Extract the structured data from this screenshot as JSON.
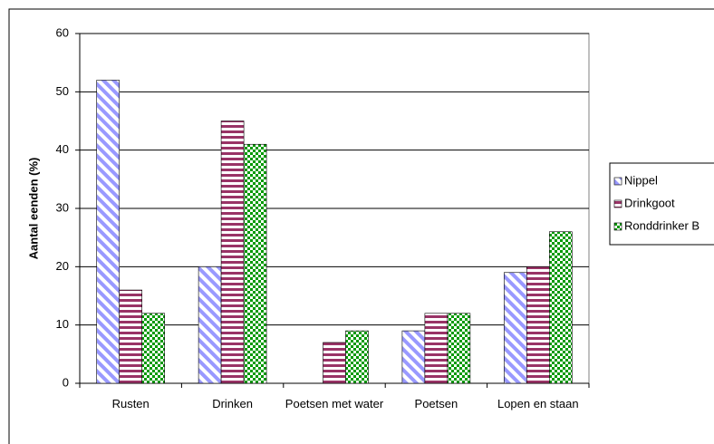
{
  "chart_data": {
    "type": "bar",
    "y_label": "Aantal eenden (%)",
    "categories": [
      "Rusten",
      "Drinken",
      "Poetsen met water",
      "Poetsen",
      "Lopen en staan"
    ],
    "series": [
      {
        "name": "Nippel",
        "color": "#9999ff",
        "pattern": "diagonal",
        "values": [
          52,
          20,
          0,
          9,
          19
        ]
      },
      {
        "name": "Drinkgoot",
        "color": "#993366",
        "pattern": "horizontal",
        "values": [
          16,
          45,
          7,
          12,
          20
        ]
      },
      {
        "name": "Ronddrinker B",
        "color": "#009900",
        "pattern": "checker",
        "values": [
          12,
          41,
          9,
          12,
          26
        ]
      }
    ],
    "ylim": [
      0,
      60
    ],
    "yticks": [
      0,
      10,
      20,
      30,
      40,
      50,
      60
    ],
    "grid": true,
    "legend": "right"
  }
}
